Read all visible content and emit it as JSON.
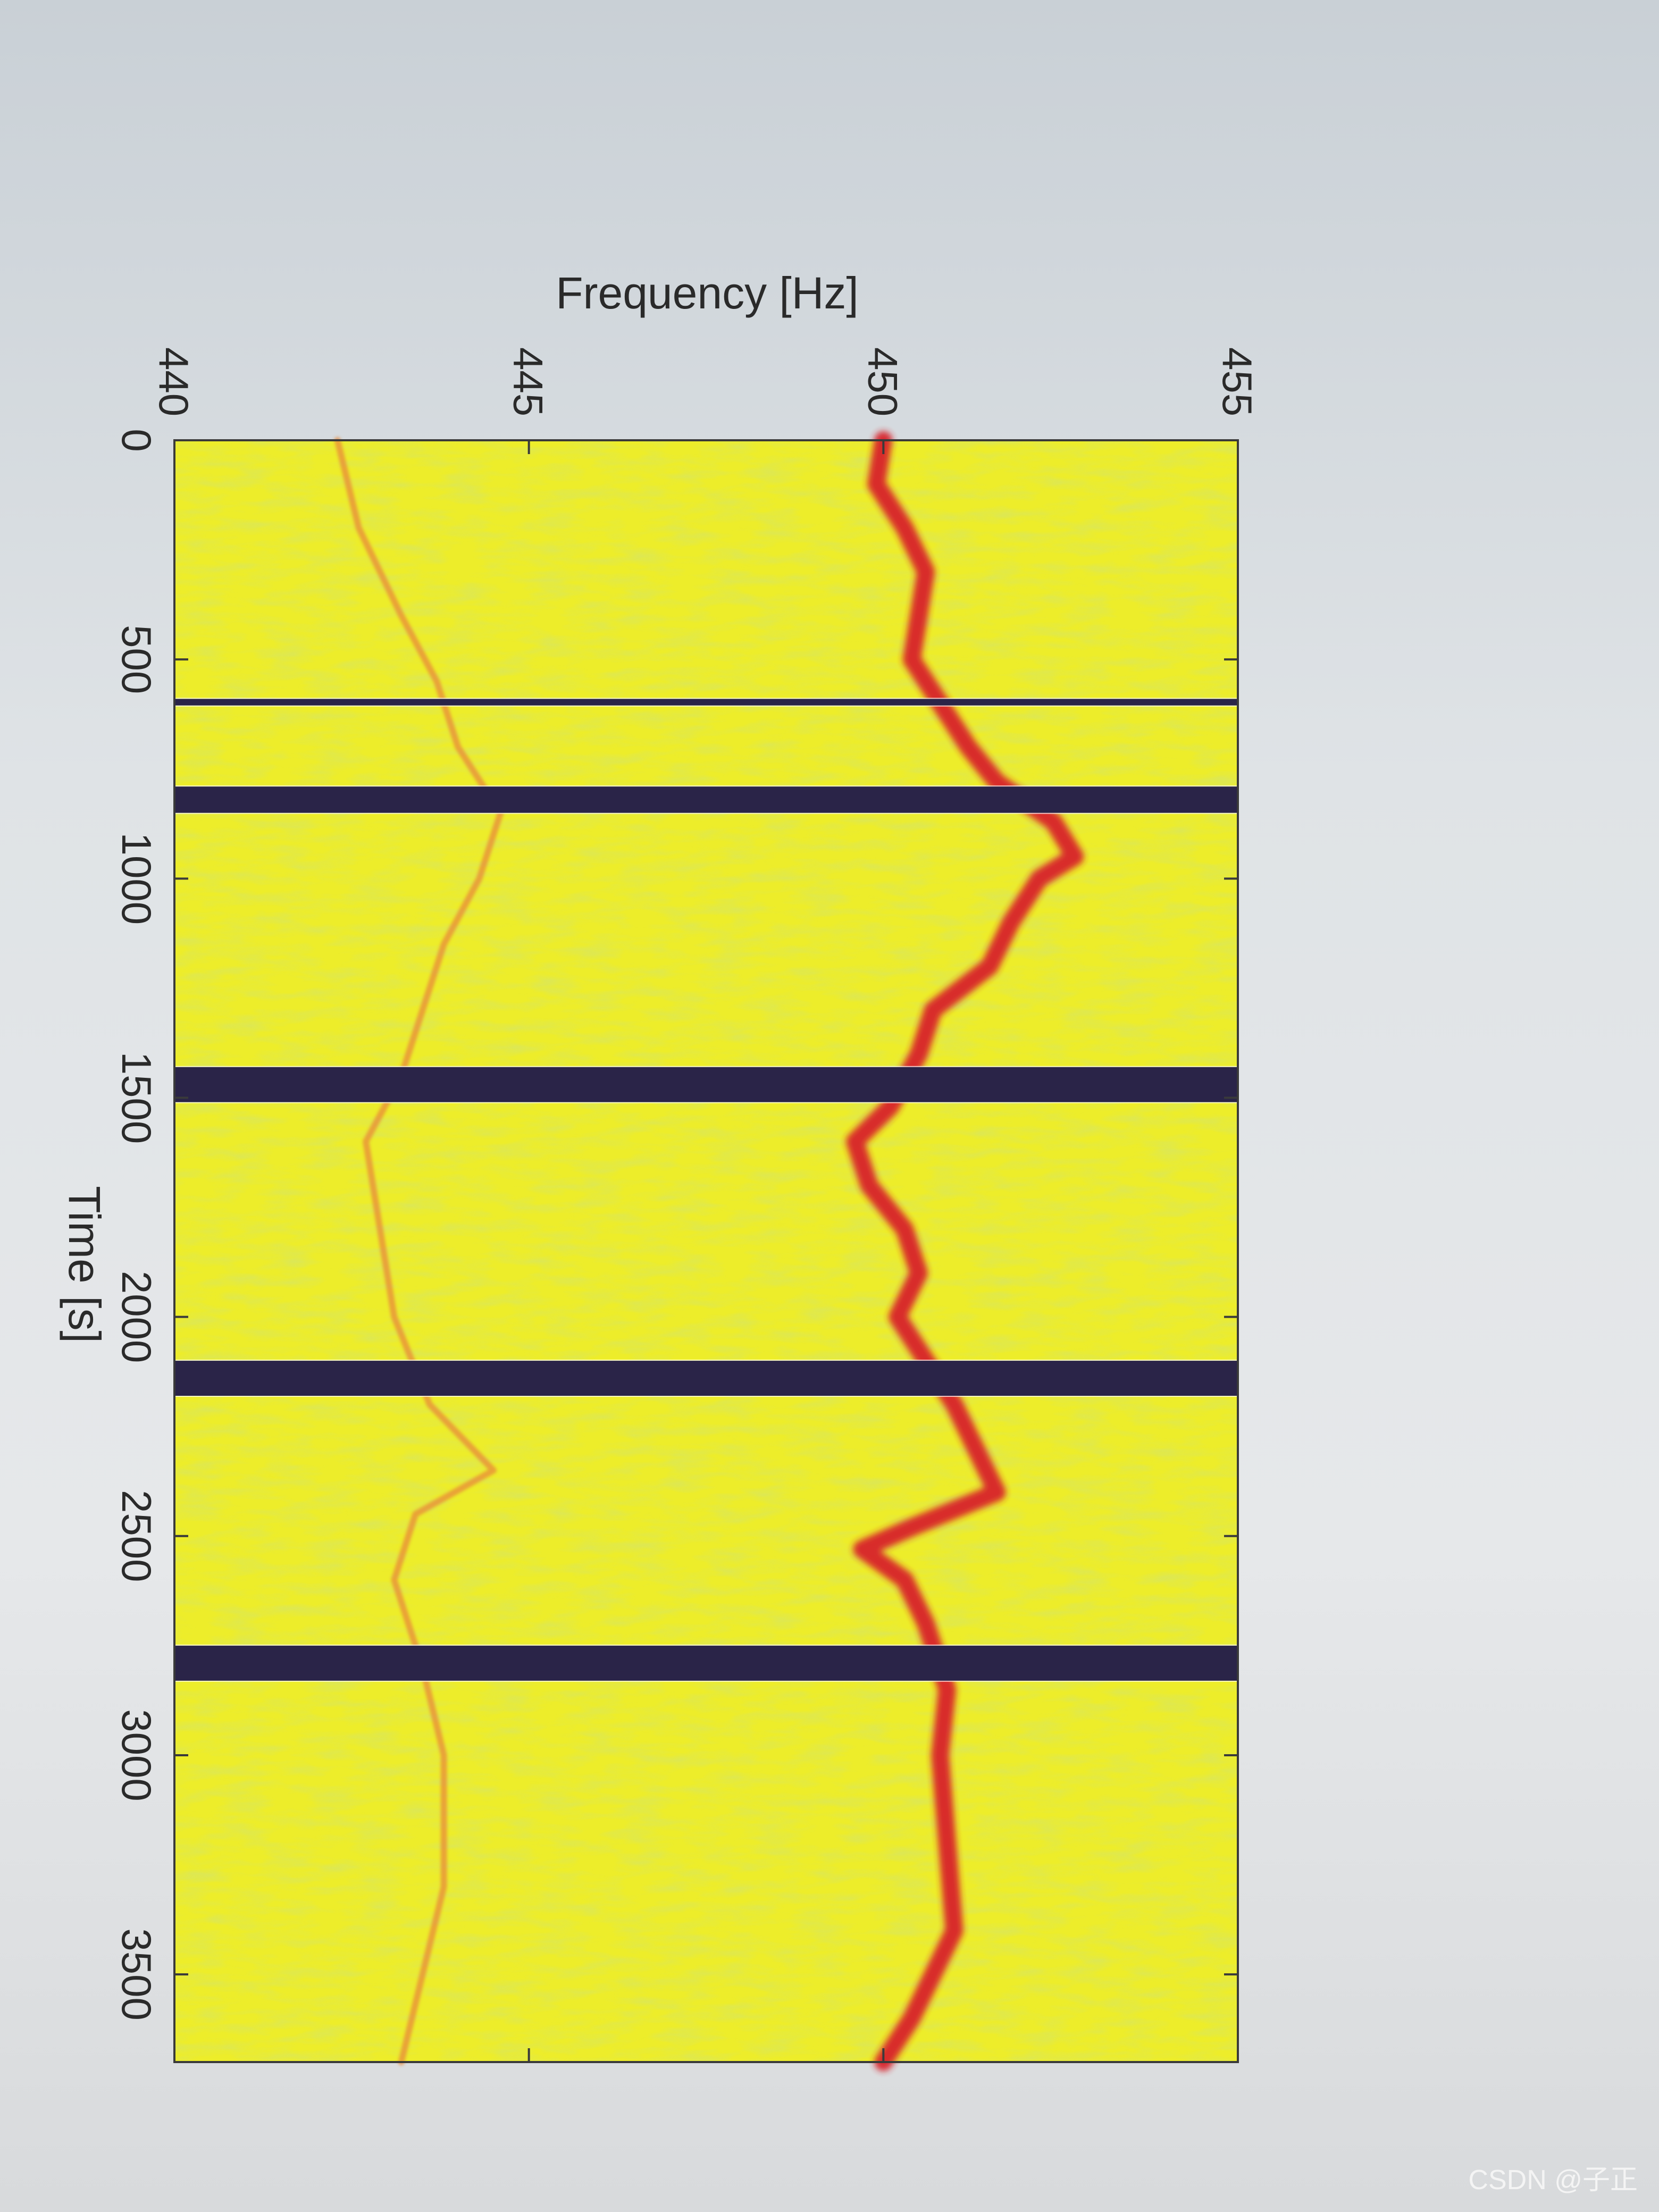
{
  "watermark": "CSDN @子正",
  "colors": {
    "field": "#eded2a",
    "strong_line": "#d8242a",
    "faint_line": "#e88a3a",
    "gap_band": "#2a2448",
    "frame": "#3a3a3a"
  },
  "chart_data": {
    "type": "heatmap",
    "orientation": "rotated-90",
    "title": "",
    "xlabel": "Time [s]",
    "ylabel": "Frequency [Hz]",
    "xlim": [
      0,
      3700
    ],
    "ylim": [
      440,
      455
    ],
    "xticks": [
      {
        "value": 0,
        "label": "0"
      },
      {
        "value": 500,
        "label": "500"
      },
      {
        "value": 1000,
        "label": "1000"
      },
      {
        "value": 1500,
        "label": "1500"
      },
      {
        "value": 2000,
        "label": "2000"
      },
      {
        "value": 2500,
        "label": "2500"
      },
      {
        "value": 3000,
        "label": "3000"
      },
      {
        "value": 3500,
        "label": "3500"
      }
    ],
    "yticks": [
      {
        "value": 440,
        "label": "440"
      },
      {
        "value": 445,
        "label": "445"
      },
      {
        "value": 450,
        "label": "450"
      },
      {
        "value": 455,
        "label": "455"
      }
    ],
    "gaps": [
      {
        "start": 590,
        "end": 605
      },
      {
        "start": 790,
        "end": 850
      },
      {
        "start": 1430,
        "end": 1510
      },
      {
        "start": 2100,
        "end": 2180
      },
      {
        "start": 2750,
        "end": 2830
      }
    ],
    "series": [
      {
        "kind": "dominant",
        "points": [
          [
            0,
            450.0
          ],
          [
            100,
            449.9
          ],
          [
            200,
            450.3
          ],
          [
            300,
            450.6
          ],
          [
            400,
            450.5
          ],
          [
            500,
            450.4
          ],
          [
            600,
            450.8
          ],
          [
            700,
            451.2
          ],
          [
            780,
            451.6
          ],
          [
            870,
            452.4
          ],
          [
            950,
            452.7
          ],
          [
            1000,
            452.2
          ],
          [
            1100,
            451.8
          ],
          [
            1200,
            451.5
          ],
          [
            1300,
            450.7
          ],
          [
            1400,
            450.5
          ],
          [
            1520,
            450.1
          ],
          [
            1600,
            449.6
          ],
          [
            1700,
            449.8
          ],
          [
            1800,
            450.3
          ],
          [
            1900,
            450.5
          ],
          [
            2000,
            450.2
          ],
          [
            2100,
            450.6
          ],
          [
            2200,
            451.0
          ],
          [
            2300,
            451.3
          ],
          [
            2400,
            451.6
          ],
          [
            2480,
            450.4
          ],
          [
            2530,
            449.7
          ],
          [
            2600,
            450.3
          ],
          [
            2700,
            450.6
          ],
          [
            2850,
            450.9
          ],
          [
            3000,
            450.8
          ],
          [
            3200,
            450.9
          ],
          [
            3400,
            451.0
          ],
          [
            3600,
            450.4
          ],
          [
            3700,
            450.0
          ]
        ]
      },
      {
        "kind": "faint",
        "points": [
          [
            0,
            442.3
          ],
          [
            200,
            442.6
          ],
          [
            400,
            443.2
          ],
          [
            550,
            443.7
          ],
          [
            700,
            444.0
          ],
          [
            850,
            444.6
          ],
          [
            1000,
            444.3
          ],
          [
            1150,
            443.8
          ],
          [
            1300,
            443.5
          ],
          [
            1450,
            443.2
          ],
          [
            1600,
            442.7
          ],
          [
            1800,
            442.9
          ],
          [
            2000,
            443.1
          ],
          [
            2200,
            443.6
          ],
          [
            2350,
            444.5
          ],
          [
            2450,
            443.4
          ],
          [
            2600,
            443.1
          ],
          [
            2800,
            443.5
          ],
          [
            3000,
            443.8
          ],
          [
            3300,
            443.8
          ],
          [
            3500,
            443.5
          ],
          [
            3700,
            443.2
          ]
        ]
      }
    ]
  }
}
